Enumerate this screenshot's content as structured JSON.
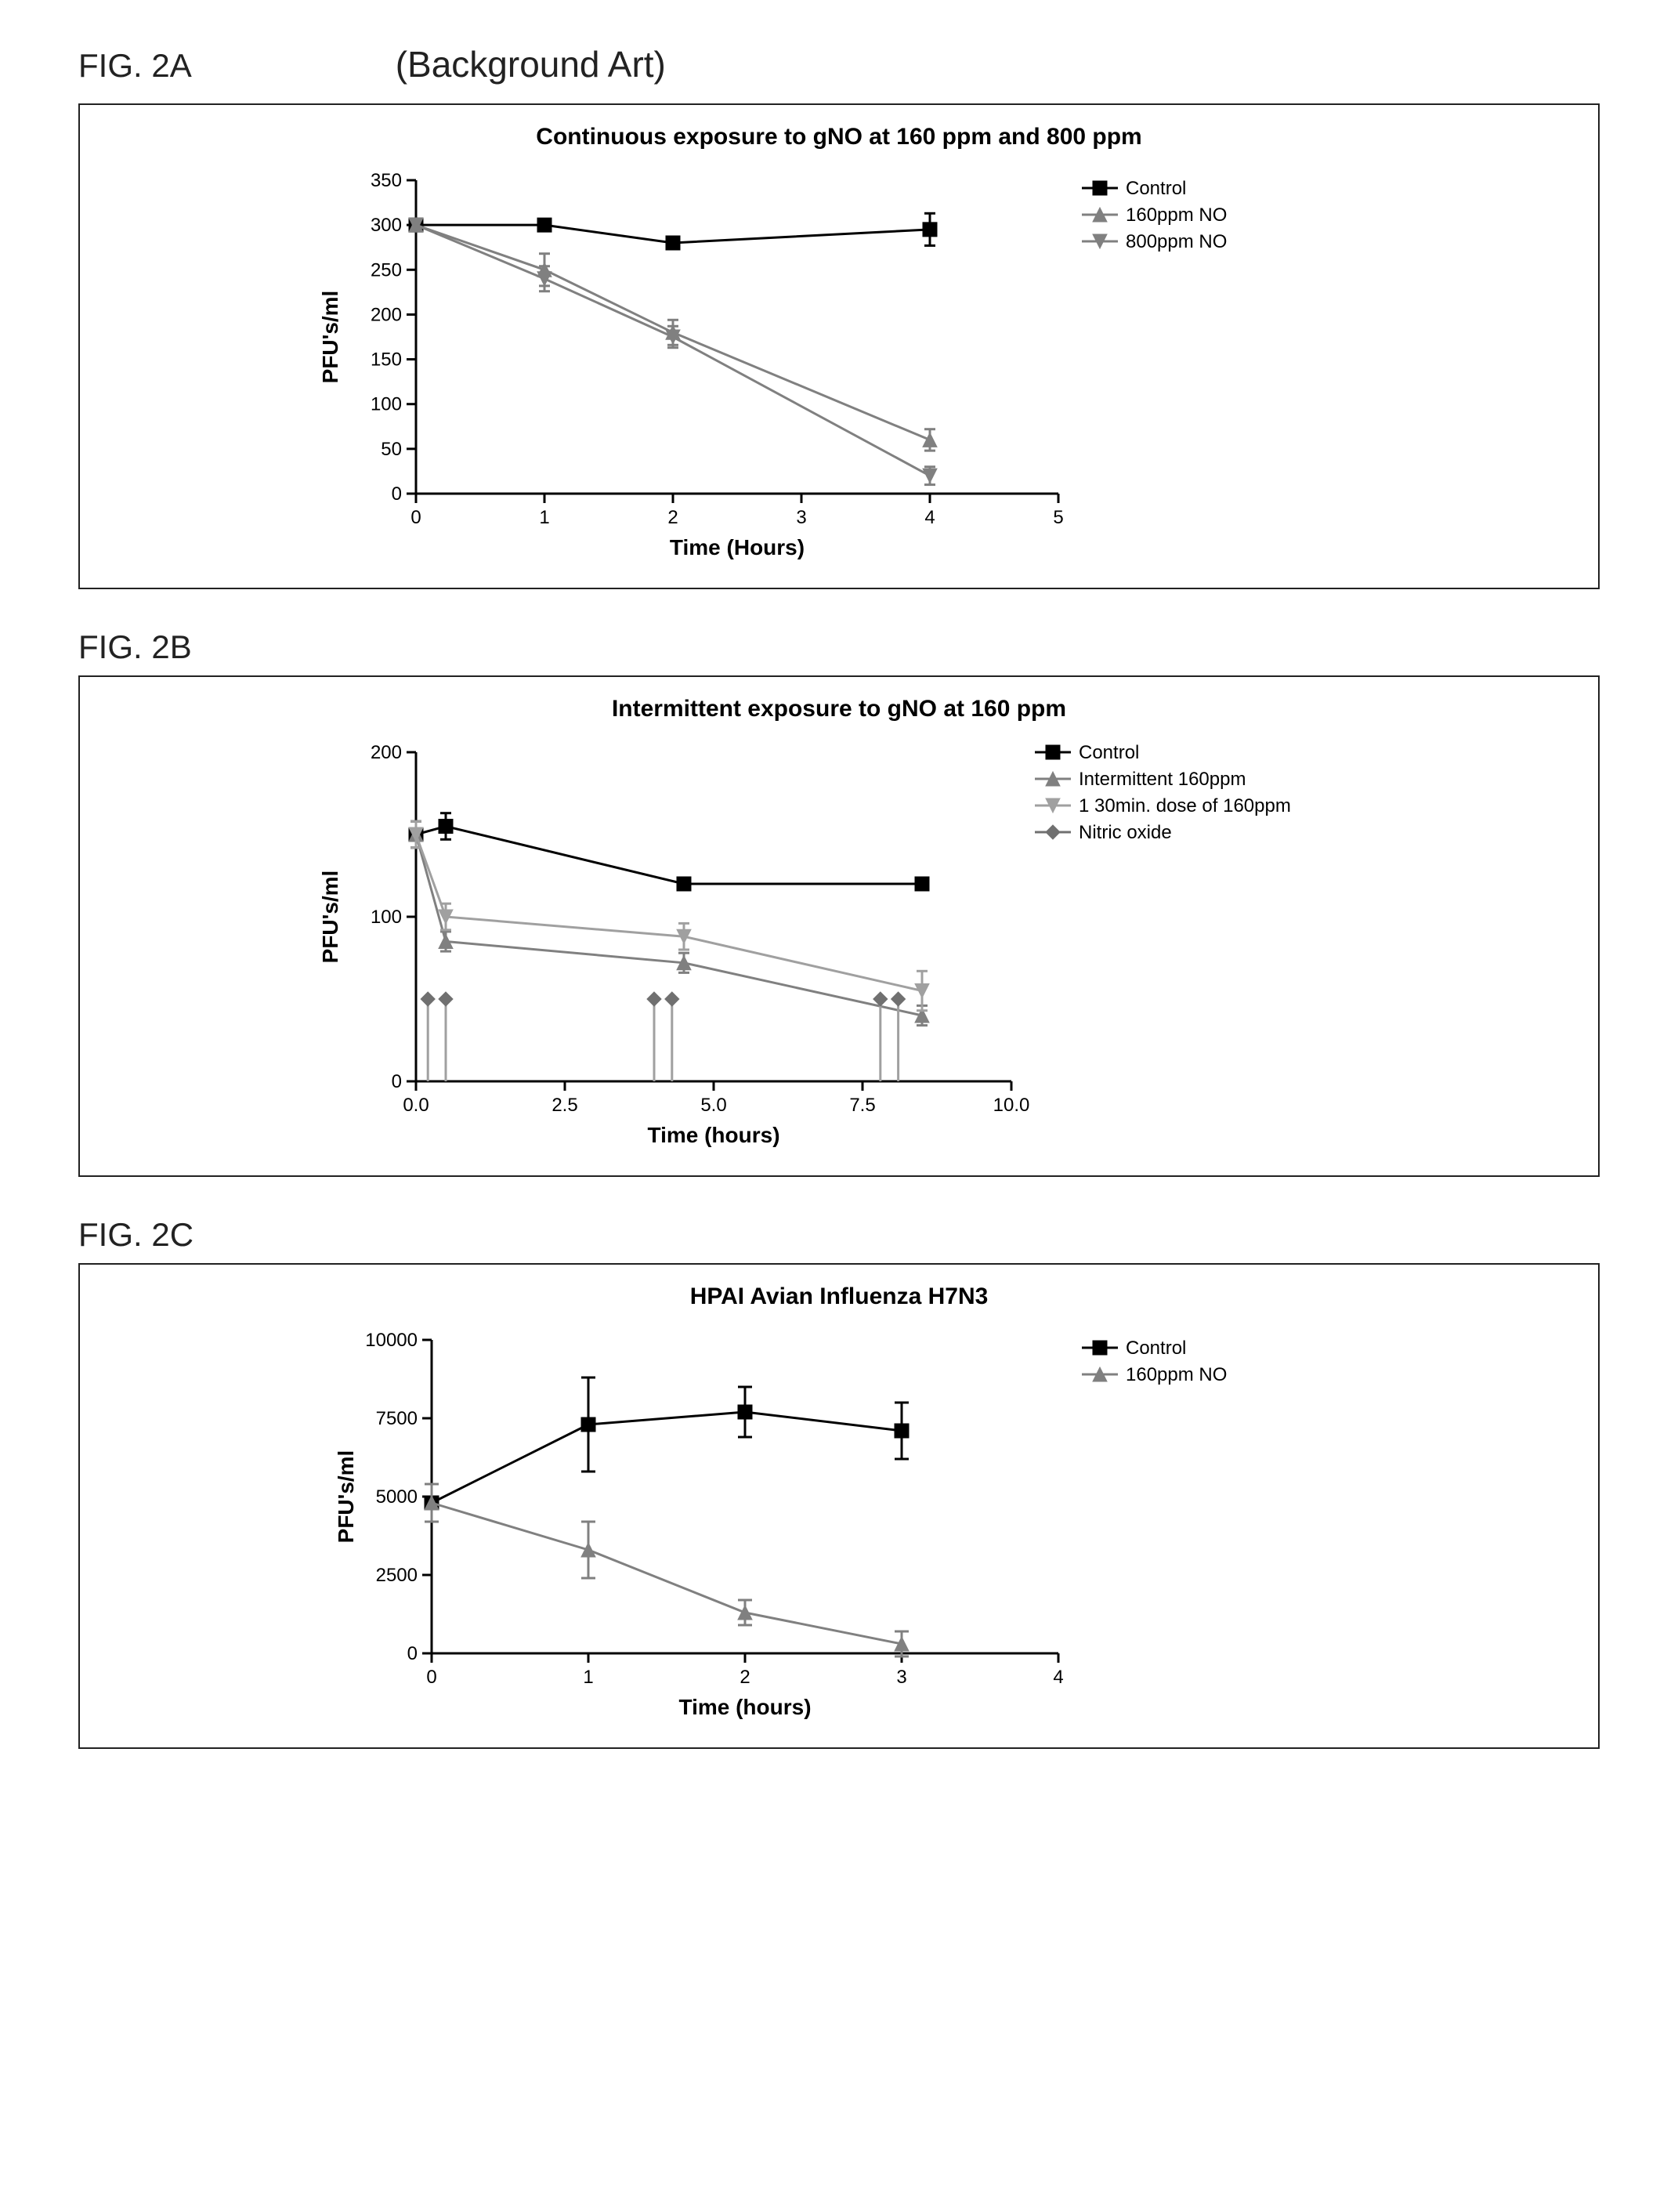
{
  "header": {
    "background_art": "(Background Art)"
  },
  "figures": {
    "A": {
      "label": "FIG. 2A",
      "title": "Continuous exposure to gNO at 160 ppm and 800 ppm",
      "type": "line",
      "xlabel": "Time (Hours)",
      "ylabel": "PFU's/ml",
      "xlim": [
        0,
        5
      ],
      "xtick_step": 1,
      "ylim": [
        0,
        350
      ],
      "ytick_step": 50,
      "background_color": "#ffffff",
      "colors": {
        "control": "#000000",
        "s160": "#808080",
        "s800": "#808080"
      },
      "markers": {
        "control": "square",
        "s160": "triangle-up",
        "s800": "triangle-down"
      },
      "error_cap": 7,
      "series": [
        {
          "key": "control",
          "label": "Control",
          "x": [
            0,
            1,
            2,
            4
          ],
          "y": [
            300,
            300,
            280,
            295
          ],
          "err": [
            0,
            0,
            0,
            18
          ]
        },
        {
          "key": "s160",
          "label": "160ppm NO",
          "x": [
            0,
            1,
            2,
            4
          ],
          "y": [
            300,
            250,
            180,
            60
          ],
          "err": [
            0,
            18,
            14,
            12
          ]
        },
        {
          "key": "s800",
          "label": "800ppm NO",
          "x": [
            0,
            1,
            2,
            4
          ],
          "y": [
            300,
            240,
            175,
            20
          ],
          "err": [
            0,
            14,
            12,
            10
          ]
        }
      ]
    },
    "B": {
      "label": "FIG. 2B",
      "title": "Intermittent exposure to gNO at 160 ppm",
      "type": "line",
      "xlabel": "Time (hours)",
      "ylabel": "PFU's/ml",
      "xlim": [
        0,
        10
      ],
      "xtick_step": 2.5,
      "ylim": [
        0,
        200
      ],
      "ytick_step": 100,
      "background_color": "#ffffff",
      "colors": {
        "control": "#000000",
        "intermittent": "#808080",
        "onedose": "#a0a0a0",
        "no": "#707070"
      },
      "markers": {
        "control": "square",
        "intermittent": "triangle-up",
        "onedose": "triangle-down",
        "no": "diamond"
      },
      "error_cap": 7,
      "series": [
        {
          "key": "control",
          "label": "Control",
          "x": [
            0,
            0.5,
            4.5,
            8.5
          ],
          "y": [
            150,
            155,
            120,
            120
          ],
          "err": [
            8,
            8,
            0,
            0
          ]
        },
        {
          "key": "intermittent",
          "label": " Intermittent 160ppm",
          "x": [
            0,
            0.5,
            4.5,
            8.5
          ],
          "y": [
            150,
            85,
            72,
            40
          ],
          "err": [
            8,
            6,
            6,
            6
          ]
        },
        {
          "key": "onedose",
          "label": "1 30min. dose of 160ppm",
          "x": [
            0,
            0.5,
            4.5,
            8.5
          ],
          "y": [
            150,
            100,
            88,
            55
          ],
          "err": [
            8,
            8,
            8,
            12
          ]
        },
        {
          "key": "no",
          "label": "Nitric oxide",
          "x": [
            0.2,
            0.5,
            4.0,
            4.3,
            7.8,
            8.1
          ],
          "y": [
            50,
            50,
            50,
            50,
            50,
            50
          ],
          "err": [
            50,
            50,
            50,
            50,
            50,
            50
          ]
        }
      ]
    },
    "C": {
      "label": "FIG. 2C",
      "title": "HPAI Avian Influenza H7N3",
      "type": "line",
      "xlabel": "Time (hours)",
      "ylabel": "PFU's/ml",
      "xlim": [
        0,
        4
      ],
      "xtick_step": 1,
      "ylim": [
        0,
        10000
      ],
      "ytick_step": 2500,
      "background_color": "#ffffff",
      "colors": {
        "control": "#000000",
        "s160": "#808080"
      },
      "markers": {
        "control": "square",
        "s160": "triangle-up"
      },
      "error_cap": 9,
      "series": [
        {
          "key": "control",
          "label": "Control",
          "x": [
            0,
            1,
            2,
            3
          ],
          "y": [
            4800,
            7300,
            7700,
            7100
          ],
          "err": [
            600,
            1500,
            800,
            900
          ]
        },
        {
          "key": "s160",
          "label": "160ppm NO",
          "x": [
            0,
            1,
            2,
            3
          ],
          "y": [
            4800,
            3300,
            1300,
            300
          ],
          "err": [
            600,
            900,
            400,
            400
          ]
        }
      ]
    }
  }
}
